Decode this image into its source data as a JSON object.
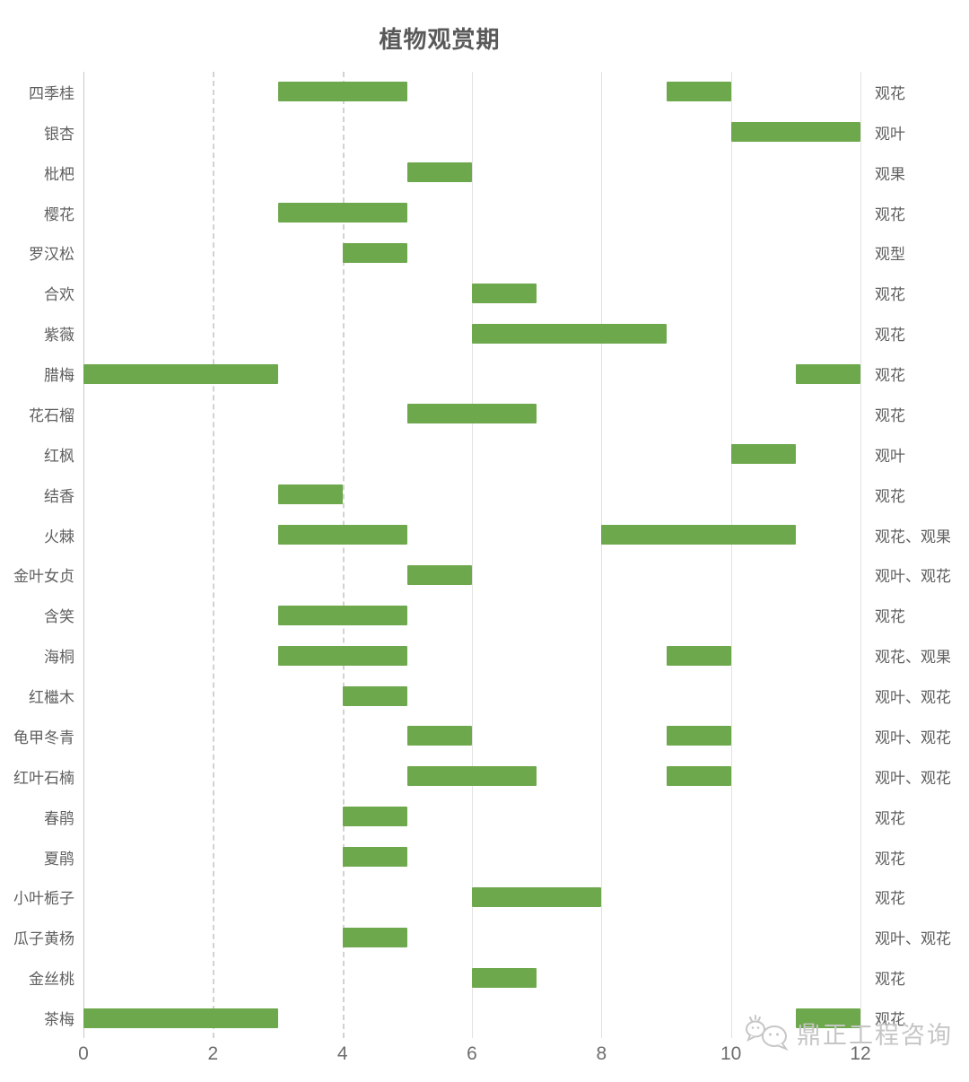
{
  "title": "植物观赏期",
  "watermark": {
    "text": "鼎正工程咨询",
    "icon": "wechat-logo-icon"
  },
  "colors": {
    "bar_green": "#6ea84d",
    "label_gray": "#5f5f5f",
    "tick_gray": "#6e6e6e",
    "gridline_gray": "#d2d2d2",
    "watermark_gray": "#c6c6c6"
  },
  "chart_data": {
    "type": "bar",
    "subtype": "gantt-range",
    "title": "植物观赏期",
    "xlabel": "",
    "ylabel": "",
    "xlim": [
      0,
      12
    ],
    "x_ticks": [
      0,
      2,
      4,
      6,
      8,
      10,
      12
    ],
    "grid": "vertical-only",
    "legend_position": "none",
    "rows": [
      {
        "name": "四季桂",
        "periods": [
          [
            3,
            5
          ],
          [
            9,
            10
          ]
        ],
        "category": "观花"
      },
      {
        "name": "银杏",
        "periods": [
          [
            10,
            12
          ]
        ],
        "category": "观叶"
      },
      {
        "name": "枇杷",
        "periods": [
          [
            5,
            6
          ]
        ],
        "category": "观果"
      },
      {
        "name": "樱花",
        "periods": [
          [
            3,
            5
          ]
        ],
        "category": "观花"
      },
      {
        "name": "罗汉松",
        "periods": [
          [
            4,
            5
          ]
        ],
        "category": "观型"
      },
      {
        "name": "合欢",
        "periods": [
          [
            6,
            7
          ]
        ],
        "category": "观花"
      },
      {
        "name": "紫薇",
        "periods": [
          [
            6,
            9
          ]
        ],
        "category": "观花"
      },
      {
        "name": "腊梅",
        "periods": [
          [
            0,
            3
          ],
          [
            11,
            12
          ]
        ],
        "category": "观花"
      },
      {
        "name": "花石榴",
        "periods": [
          [
            5,
            7
          ]
        ],
        "category": "观花"
      },
      {
        "name": "红枫",
        "periods": [
          [
            10,
            11
          ]
        ],
        "category": "观叶"
      },
      {
        "name": "结香",
        "periods": [
          [
            3,
            4
          ]
        ],
        "category": "观花"
      },
      {
        "name": "火棘",
        "periods": [
          [
            3,
            5
          ],
          [
            8,
            11
          ]
        ],
        "category": "观花、观果"
      },
      {
        "name": "金叶女贞",
        "periods": [
          [
            5,
            6
          ]
        ],
        "category": "观叶、观花"
      },
      {
        "name": "含笑",
        "periods": [
          [
            3,
            5
          ]
        ],
        "category": "观花"
      },
      {
        "name": "海桐",
        "periods": [
          [
            3,
            5
          ],
          [
            9,
            10
          ]
        ],
        "category": "观花、观果"
      },
      {
        "name": "红檵木",
        "periods": [
          [
            4,
            5
          ]
        ],
        "category": "观叶、观花"
      },
      {
        "name": "龟甲冬青",
        "periods": [
          [
            5,
            6
          ],
          [
            9,
            10
          ]
        ],
        "category": "观叶、观花"
      },
      {
        "name": "红叶石楠",
        "periods": [
          [
            5,
            7
          ],
          [
            9,
            10
          ]
        ],
        "category": "观叶、观花"
      },
      {
        "name": "春鹃",
        "periods": [
          [
            4,
            5
          ]
        ],
        "category": "观花"
      },
      {
        "name": "夏鹃",
        "periods": [
          [
            4,
            5
          ]
        ],
        "category": "观花"
      },
      {
        "name": "小叶栀子",
        "periods": [
          [
            6,
            8
          ]
        ],
        "category": "观花"
      },
      {
        "name": "瓜子黄杨",
        "periods": [
          [
            4,
            5
          ]
        ],
        "category": "观叶、观花"
      },
      {
        "name": "金丝桃",
        "periods": [
          [
            6,
            7
          ]
        ],
        "category": "观花"
      },
      {
        "name": "茶梅",
        "periods": [
          [
            0,
            3
          ],
          [
            11,
            12
          ]
        ],
        "category": "观花"
      }
    ]
  }
}
